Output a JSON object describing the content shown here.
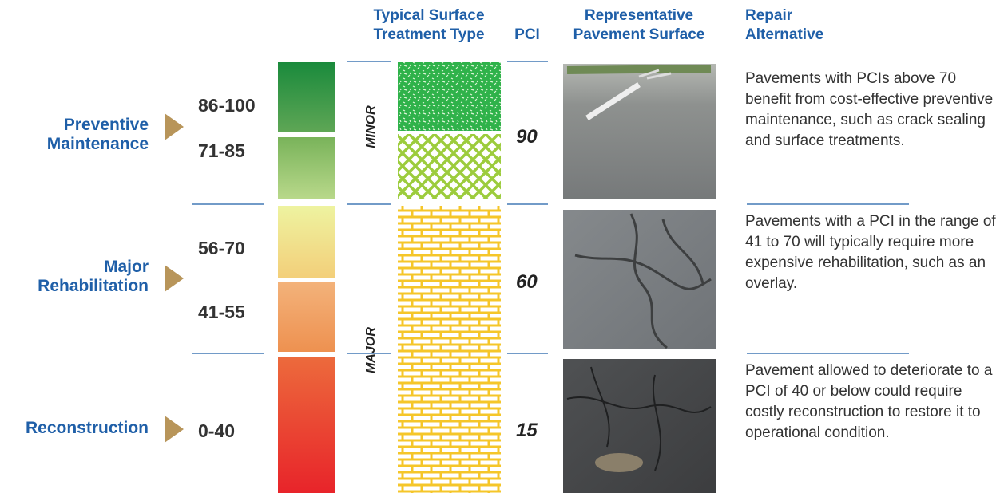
{
  "headers": {
    "treatment": "Typical Surface Treatment Type",
    "pci": "PCI",
    "surface": "Representative Pavement Surface",
    "repair": "Repair Alternative"
  },
  "rows": [
    {
      "category": "Preventive Maintenance",
      "ranges": [
        "86-100",
        "71-85"
      ],
      "pci": "90",
      "description": "Pavements with PCIs above 70 benefit from cost-effective preventive maintenance, such as crack sealing and surface treatments."
    },
    {
      "category": "Major Rehabilitation",
      "ranges": [
        "56-70",
        "41-55"
      ],
      "pci": "60",
      "description": "Pavements with a PCI in the range of 41 to 70 will typically require more expensive rehabilitation, such as an overlay."
    },
    {
      "category": "Reconstruction",
      "ranges": [
        "0-40"
      ],
      "pci": "15",
      "description": "Pavement allowed to deteriorate to a PCI of 40 or below could require costly reconstruction to restore it to operational condition."
    }
  ],
  "treatments": [
    "MINOR",
    "MAJOR"
  ]
}
